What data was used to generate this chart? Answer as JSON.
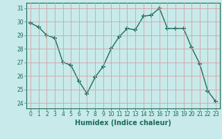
{
  "x": [
    0,
    1,
    2,
    3,
    4,
    5,
    6,
    7,
    8,
    9,
    10,
    11,
    12,
    13,
    14,
    15,
    16,
    17,
    18,
    19,
    20,
    21,
    22,
    23
  ],
  "y": [
    29.9,
    29.6,
    29.0,
    28.8,
    27.0,
    26.8,
    25.6,
    24.7,
    25.9,
    26.7,
    28.0,
    28.9,
    29.5,
    29.4,
    30.4,
    30.5,
    31.0,
    29.5,
    29.5,
    29.5,
    28.1,
    26.9,
    24.9,
    24.1
  ],
  "line_color": "#1a6b5a",
  "marker": "+",
  "marker_size": 4,
  "bg_color": "#c8eaea",
  "grid_color": "#d4a0a0",
  "xlabel": "Humidex (Indice chaleur)",
  "ylabel_ticks": [
    24,
    25,
    26,
    27,
    28,
    29,
    30,
    31
  ],
  "xtick_labels": [
    "0",
    "1",
    "2",
    "3",
    "4",
    "5",
    "6",
    "7",
    "8",
    "9",
    "10",
    "11",
    "12",
    "13",
    "14",
    "15",
    "16",
    "17",
    "18",
    "19",
    "20",
    "21",
    "22",
    "23"
  ],
  "ylim": [
    23.6,
    31.4
  ],
  "xlim": [
    -0.5,
    23.5
  ],
  "tick_color": "#1a6b5a",
  "label_fontsize": 7,
  "tick_fontsize": 5.5,
  "linewidth": 1.0,
  "marker_color": "#1a6b5a"
}
